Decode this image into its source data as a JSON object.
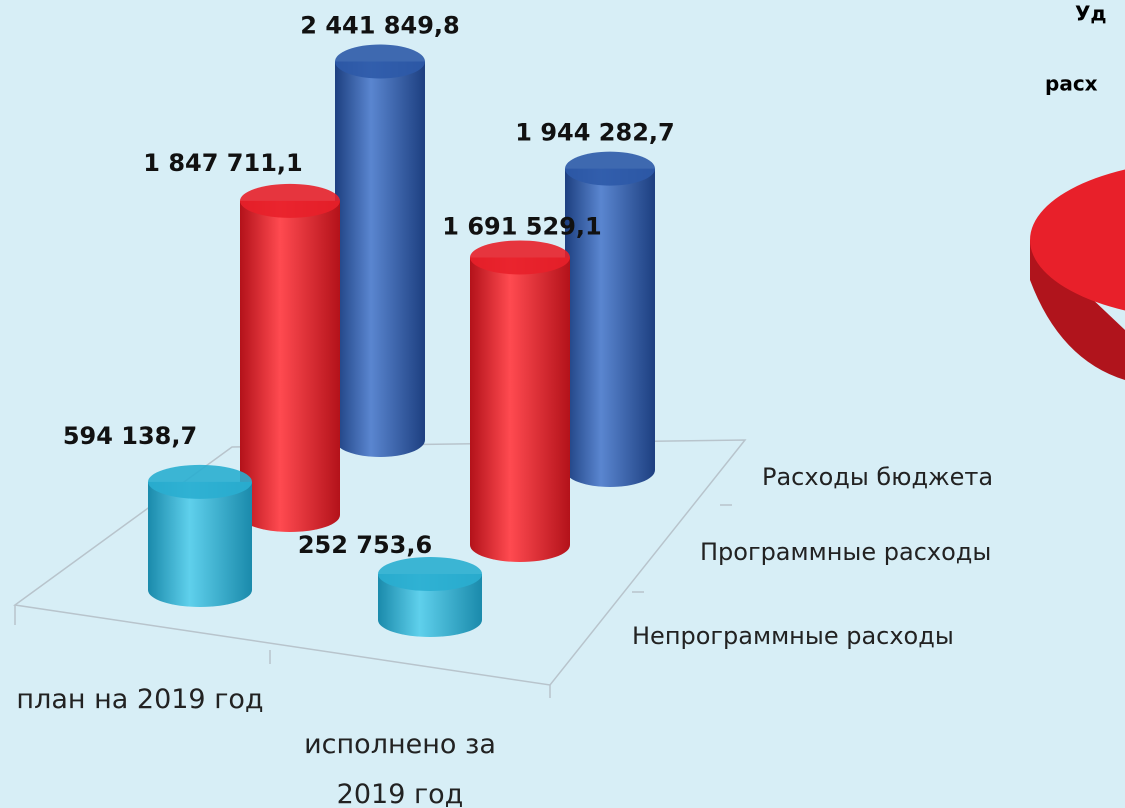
{
  "chart_data": {
    "type": "bar3d",
    "categories": [
      "план на 2019 год",
      "исполнено за 2019 год"
    ],
    "series": [
      {
        "name": "Расходы бюджета",
        "color": "#2e5aa8",
        "values": [
          2441849.8,
          1944282.7
        ],
        "value_labels": [
          "2 441 849,8",
          "1 944 282,7"
        ]
      },
      {
        "name": "Программные расходы",
        "color": "#e8202a",
        "values": [
          1847711.1,
          1691529.1
        ],
        "value_labels": [
          "1 847 711,1",
          "1 691 529,1"
        ]
      },
      {
        "name": "Непрограммные расходы",
        "color": "#2aaed0",
        "values": [
          594138.7,
          252753.6
        ],
        "value_labels": [
          "594 138,7",
          "252 753,6"
        ]
      }
    ],
    "side_text": [
      "Уд",
      "расх"
    ]
  }
}
